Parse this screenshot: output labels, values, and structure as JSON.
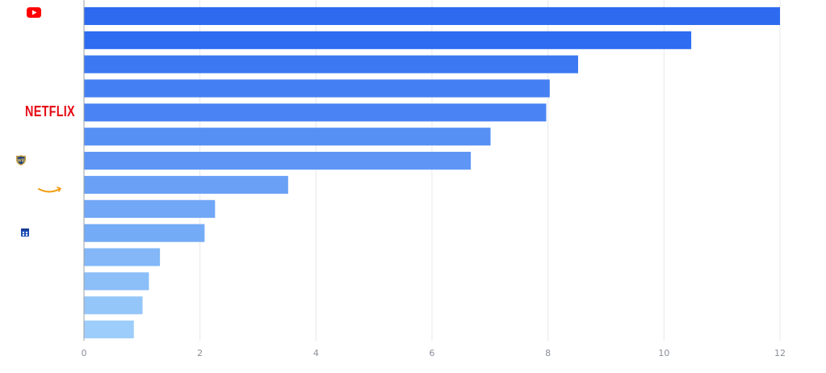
{
  "chart_data": {
    "type": "bar",
    "orientation": "horizontal",
    "title": "",
    "xlabel": "",
    "ylabel": "",
    "xlim": [
      0,
      12
    ],
    "x_ticks": [
      0,
      2,
      4,
      6,
      8,
      10,
      12
    ],
    "grid": true,
    "categories": [
      "youtube-logo",
      "",
      "",
      "",
      "NETFLIX",
      "",
      "warner-bros-logo",
      "amazon-logo",
      "",
      "calendar-app-logo",
      "",
      "",
      "",
      ""
    ],
    "values": [
      12.0,
      10.47,
      8.52,
      8.03,
      7.97,
      7.01,
      6.67,
      3.52,
      2.26,
      2.08,
      1.31,
      1.12,
      1.01,
      0.86
    ],
    "colors": [
      "#2d6af0",
      "#2e6cf1",
      "#3c78f2",
      "#4580f3",
      "#4a83f3",
      "#5790f4",
      "#5f96f5",
      "#6aa1f6",
      "#71a7f6",
      "#74abf7",
      "#83b7f8",
      "#8cbef8",
      "#95c6f9",
      "#9dcdfa"
    ]
  },
  "logos": {
    "youtube": {
      "icon": "youtube-icon",
      "color": "#ff0000"
    },
    "netflix": {
      "text": "NETFLIX",
      "color": "#e50914"
    },
    "warner": {
      "icon": "warner-bros-shield-icon",
      "color": "#c8a24a"
    },
    "amazon": {
      "icon": "amazon-smile-icon",
      "color": "#f39c12"
    },
    "calendar": {
      "icon": "calendar-app-icon",
      "color": "#1f4fb8"
    }
  }
}
